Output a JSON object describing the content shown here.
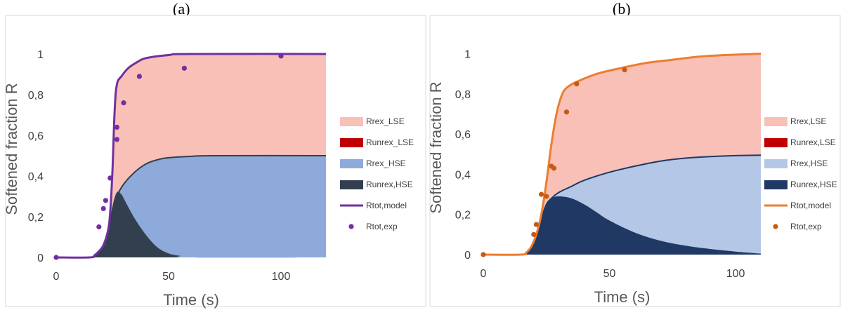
{
  "chart_data": [
    {
      "panel": "(a)",
      "type": "area",
      "xlabel": "Time (s)",
      "ylabel": "Softened fraction R",
      "xlim": [
        0,
        120
      ],
      "ylim": [
        0,
        1.1
      ],
      "x_ticks": [
        "0",
        "50",
        "100"
      ],
      "y_ticks": [
        "0",
        "0,2",
        "0,4",
        "0,6",
        "0,8",
        "1"
      ],
      "grid": false,
      "legend_position": "right",
      "series": [
        {
          "name": "Rrex_LSE",
          "kind": "area",
          "color": "#f8c0b6"
        },
        {
          "name": "Runrex_LSE",
          "kind": "area",
          "color": "#c00000"
        },
        {
          "name": "Rrex_HSE",
          "kind": "area",
          "color": "#8eaadb"
        },
        {
          "name": "Runrex,HSE",
          "kind": "area",
          "color": "#323f4f"
        },
        {
          "name": "Rtot,model",
          "kind": "line",
          "color": "#7030a0"
        },
        {
          "name": "Rtot,exp",
          "kind": "scatter",
          "color": "#7030a0"
        }
      ],
      "curves": {
        "rtot_model": [
          [
            0,
            0
          ],
          [
            15,
            0
          ],
          [
            17,
            0.01
          ],
          [
            19,
            0.03
          ],
          [
            21,
            0.06
          ],
          [
            23,
            0.13
          ],
          [
            24,
            0.22
          ],
          [
            25,
            0.42
          ],
          [
            26,
            0.72
          ],
          [
            27,
            0.85
          ],
          [
            29,
            0.89
          ],
          [
            32,
            0.93
          ],
          [
            36,
            0.96
          ],
          [
            40,
            0.98
          ],
          [
            50,
            0.995
          ],
          [
            60,
            1
          ],
          [
            120,
            1
          ]
        ],
        "hse_total": [
          [
            0,
            0
          ],
          [
            15,
            0
          ],
          [
            17,
            0.01
          ],
          [
            19,
            0.03
          ],
          [
            21,
            0.06
          ],
          [
            23,
            0.13
          ],
          [
            25,
            0.22
          ],
          [
            27,
            0.3
          ],
          [
            30,
            0.36
          ],
          [
            35,
            0.42
          ],
          [
            40,
            0.46
          ],
          [
            45,
            0.48
          ],
          [
            50,
            0.49
          ],
          [
            60,
            0.497
          ],
          [
            70,
            0.5
          ],
          [
            120,
            0.5
          ]
        ],
        "runrex_hse": [
          [
            0,
            0
          ],
          [
            15,
            0
          ],
          [
            17,
            0.01
          ],
          [
            19,
            0.03
          ],
          [
            21,
            0.06
          ],
          [
            23,
            0.13
          ],
          [
            25,
            0.25
          ],
          [
            27,
            0.32
          ],
          [
            29,
            0.31
          ],
          [
            31,
            0.27
          ],
          [
            35,
            0.19
          ],
          [
            40,
            0.11
          ],
          [
            45,
            0.05
          ],
          [
            50,
            0.02
          ],
          [
            55,
            0.008
          ],
          [
            60,
            0
          ],
          [
            120,
            0
          ]
        ]
      },
      "exp_points": [
        [
          0,
          0
        ],
        [
          19,
          0.15
        ],
        [
          21,
          0.24
        ],
        [
          22,
          0.28
        ],
        [
          24,
          0.39
        ],
        [
          27,
          0.58
        ],
        [
          27,
          0.64
        ],
        [
          30,
          0.76
        ],
        [
          37,
          0.89
        ],
        [
          57,
          0.93
        ],
        [
          100,
          0.99
        ]
      ]
    },
    {
      "panel": "(b)",
      "type": "area",
      "xlabel": "Time (s)",
      "ylabel": "Softened fraction R",
      "xlim": [
        0,
        110
      ],
      "ylim": [
        0,
        1.1
      ],
      "x_ticks": [
        "0",
        "50",
        "100"
      ],
      "y_ticks": [
        "0",
        "0,2",
        "0,4",
        "0,6",
        "0,8",
        "1"
      ],
      "grid": false,
      "legend_position": "right",
      "series": [
        {
          "name": "Rrex,LSE",
          "kind": "area",
          "color": "#f8c0b6"
        },
        {
          "name": "Runrex,LSE",
          "kind": "area",
          "color": "#c00000"
        },
        {
          "name": "Rrex,HSE",
          "kind": "area",
          "color": "#b4c7e7"
        },
        {
          "name": "Runrex,HSE",
          "kind": "area",
          "color": "#1f3864"
        },
        {
          "name": "Rtot,model",
          "kind": "line",
          "color": "#ed7d31"
        },
        {
          "name": "Rtot,exp",
          "kind": "scatter",
          "color": "#c55a11"
        }
      ],
      "curves": {
        "rtot_model": [
          [
            0,
            0
          ],
          [
            15,
            0
          ],
          [
            17,
            0.01
          ],
          [
            19,
            0.04
          ],
          [
            21,
            0.1
          ],
          [
            23,
            0.2
          ],
          [
            25,
            0.36
          ],
          [
            27,
            0.55
          ],
          [
            29,
            0.7
          ],
          [
            31,
            0.79
          ],
          [
            33,
            0.83
          ],
          [
            37,
            0.86
          ],
          [
            45,
            0.9
          ],
          [
            55,
            0.93
          ],
          [
            65,
            0.955
          ],
          [
            75,
            0.97
          ],
          [
            85,
            0.985
          ],
          [
            95,
            0.993
          ],
          [
            110,
            1
          ]
        ],
        "hse_total": [
          [
            0,
            0
          ],
          [
            15,
            0
          ],
          [
            17,
            0.01
          ],
          [
            19,
            0.04
          ],
          [
            21,
            0.1
          ],
          [
            23,
            0.18
          ],
          [
            25,
            0.25
          ],
          [
            27,
            0.28
          ],
          [
            30,
            0.31
          ],
          [
            35,
            0.34
          ],
          [
            40,
            0.37
          ],
          [
            50,
            0.41
          ],
          [
            60,
            0.44
          ],
          [
            70,
            0.465
          ],
          [
            80,
            0.48
          ],
          [
            90,
            0.488
          ],
          [
            100,
            0.493
          ],
          [
            110,
            0.495
          ]
        ],
        "runrex_hse": [
          [
            0,
            0
          ],
          [
            15,
            0
          ],
          [
            17,
            0.01
          ],
          [
            19,
            0.04
          ],
          [
            21,
            0.1
          ],
          [
            23,
            0.18
          ],
          [
            25,
            0.25
          ],
          [
            27,
            0.28
          ],
          [
            30,
            0.29
          ],
          [
            35,
            0.28
          ],
          [
            40,
            0.25
          ],
          [
            45,
            0.21
          ],
          [
            50,
            0.17
          ],
          [
            60,
            0.11
          ],
          [
            70,
            0.07
          ],
          [
            80,
            0.045
          ],
          [
            90,
            0.028
          ],
          [
            100,
            0.015
          ],
          [
            110,
            0.005
          ]
        ]
      },
      "exp_points": [
        [
          0,
          0
        ],
        [
          20,
          0.1
        ],
        [
          21,
          0.15
        ],
        [
          23,
          0.3
        ],
        [
          25,
          0.29
        ],
        [
          27,
          0.44
        ],
        [
          28,
          0.43
        ],
        [
          33,
          0.71
        ],
        [
          37,
          0.85
        ],
        [
          56,
          0.92
        ]
      ]
    }
  ]
}
